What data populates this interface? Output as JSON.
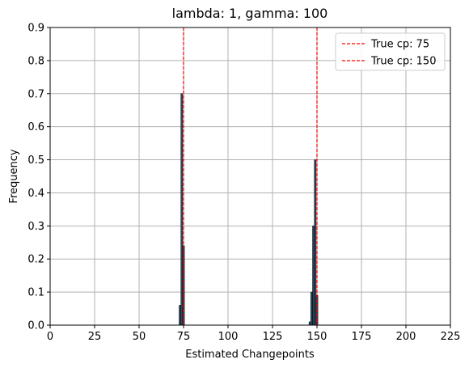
{
  "chart_data": {
    "type": "bar",
    "title": "lambda: 1, gamma: 100",
    "xlabel": "Estimated Changepoints",
    "ylabel": "Frequency",
    "xlim": [
      0,
      225
    ],
    "ylim": [
      0,
      0.9
    ],
    "xticks": [
      0,
      25,
      50,
      75,
      100,
      125,
      150,
      175,
      200,
      225
    ],
    "yticks": [
      0.0,
      0.1,
      0.2,
      0.3,
      0.4,
      0.5,
      0.6,
      0.7,
      0.8,
      0.9
    ],
    "xtick_labels": [
      "0",
      "25",
      "50",
      "75",
      "100",
      "125",
      "150",
      "175",
      "200",
      "225"
    ],
    "ytick_labels": [
      "0.0",
      "0.1",
      "0.2",
      "0.3",
      "0.4",
      "0.5",
      "0.6",
      "0.7",
      "0.8",
      "0.9"
    ],
    "grid": true,
    "bar_color": "#2e4a5f",
    "bar_edge_color": "#000000",
    "bins": [
      {
        "x": 73,
        "value": 0.06
      },
      {
        "x": 74,
        "value": 0.7
      },
      {
        "x": 75,
        "value": 0.24
      },
      {
        "x": 146,
        "value": 0.01
      },
      {
        "x": 147,
        "value": 0.1
      },
      {
        "x": 148,
        "value": 0.3
      },
      {
        "x": 149,
        "value": 0.5
      },
      {
        "x": 150,
        "value": 0.09
      }
    ],
    "reference_lines": [
      {
        "label": "True cp: 75",
        "x": 75,
        "color": "#ff0000",
        "style": "dashed"
      },
      {
        "label": "True cp: 150",
        "x": 150,
        "color": "#ff0000",
        "style": "dashed"
      }
    ],
    "legend_position": "top-right"
  }
}
